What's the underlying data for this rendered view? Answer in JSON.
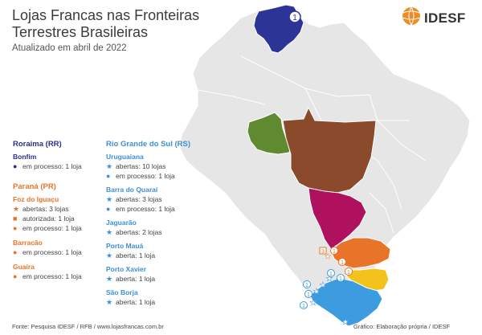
{
  "header": {
    "title": "Lojas Francas nas Fronteiras Terrestres Brasileiras",
    "subtitle": "Atualizado em abril de 2022",
    "logo_text": "IDESF"
  },
  "colors": {
    "roraima": "#2c3495",
    "rondonia": "#5f8a2f",
    "mato_grosso": "#8a4a2b",
    "mato_grosso_sul": "#b0115f",
    "parana": "#e8742a",
    "santa_catarina": "#f3c31c",
    "rio_grande_sul": "#3d9be0",
    "land": "#e6e6e6",
    "border": "#ffffff"
  },
  "map_markers": {
    "roraima": "1",
    "parana_a": "3",
    "parana_b": "1",
    "parana_c": "1",
    "parana_d": "1",
    "rs_a": "1",
    "rs_b": "1",
    "rs_c": "1",
    "rs_d": "1",
    "rs_e": "1"
  },
  "legend": {
    "roraima": {
      "title": "Roraima (RR)",
      "cities": [
        {
          "name": "Bonfim",
          "items": [
            {
              "icon": "dot",
              "text": "em processo: 1 loja"
            }
          ]
        }
      ]
    },
    "parana": {
      "title": "Paraná (PR)",
      "cities": [
        {
          "name": "Foz do Iguaçu",
          "items": [
            {
              "icon": "star",
              "text": "abertas: 3 lojas"
            },
            {
              "icon": "square",
              "text": "autorizada: 1 loja"
            },
            {
              "icon": "dot",
              "text": "em processo: 1 loja"
            }
          ]
        },
        {
          "name": "Barracão",
          "items": [
            {
              "icon": "dot",
              "text": "em processo: 1 loja"
            }
          ]
        },
        {
          "name": "Guaíra",
          "items": [
            {
              "icon": "dot",
              "text": "em processo: 1 loja"
            }
          ]
        }
      ]
    },
    "rio_grande_sul": {
      "title": "Rio Grande do Sul (RS)",
      "cities": [
        {
          "name": "Uruguaiana",
          "items": [
            {
              "icon": "star",
              "text": "abertas: 10 lojas"
            },
            {
              "icon": "dot",
              "text": "em processo: 1 loja"
            }
          ]
        },
        {
          "name": "Barra do Quaraí",
          "items": [
            {
              "icon": "star",
              "text": "abertas: 3 lojas"
            },
            {
              "icon": "dot",
              "text": "em processo: 1 loja"
            }
          ]
        },
        {
          "name": "Jaguarão",
          "items": [
            {
              "icon": "star",
              "text": "abertas: 2 lojas"
            }
          ]
        },
        {
          "name": "Porto Mauá",
          "items": [
            {
              "icon": "star",
              "text": "aberta: 1 loja"
            }
          ]
        },
        {
          "name": "Porto Xavier",
          "items": [
            {
              "icon": "star",
              "text": "aberta: 1 loja"
            }
          ]
        },
        {
          "name": "São Borja",
          "items": [
            {
              "icon": "star",
              "text": "aberta: 1 loja"
            }
          ]
        }
      ]
    }
  },
  "footer": {
    "source": "Fonte: Pesquisa IDESF / RFB / www.lojasfrancas.com.br",
    "credit": "Gráfico: Elaboração própria / IDESF"
  }
}
